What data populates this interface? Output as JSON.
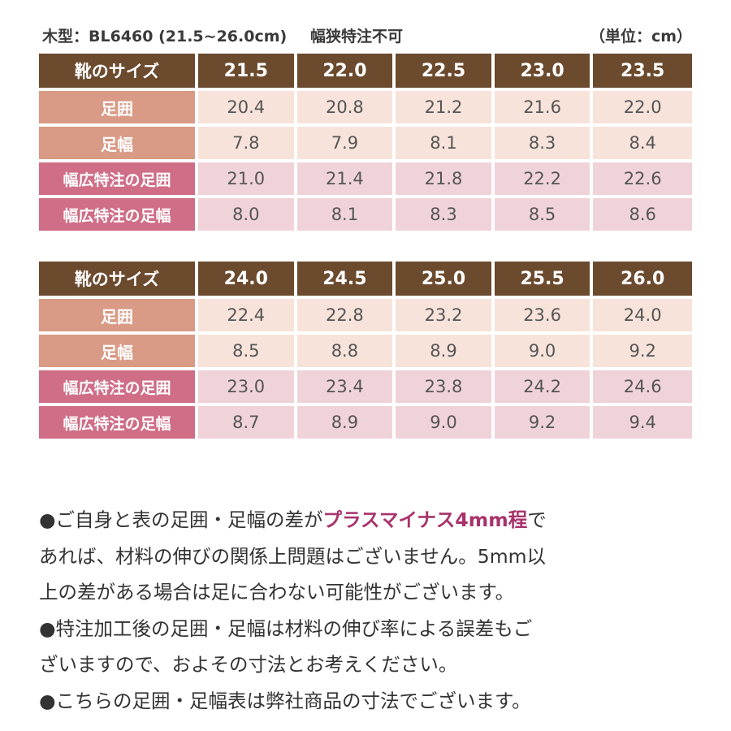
{
  "header": {
    "model": "木型：BL6460 (21.5~26.0cm)",
    "narrow": "幅狭特注不可",
    "unit": "（単位：cm）"
  },
  "row_labels": {
    "size": "靴のサイズ",
    "foot_girth": "足囲",
    "foot_width": "足幅",
    "wide_girth": "幅広特注の足囲",
    "wide_width": "幅広特注の足幅"
  },
  "tables": [
    {
      "sizes": [
        "21.5",
        "22.0",
        "22.5",
        "23.0",
        "23.5"
      ],
      "foot_girth": [
        "20.4",
        "20.8",
        "21.2",
        "21.6",
        "22.0"
      ],
      "foot_width": [
        "7.8",
        "7.9",
        "8.1",
        "8.3",
        "8.4"
      ],
      "wide_girth": [
        "21.0",
        "21.4",
        "21.8",
        "22.2",
        "22.6"
      ],
      "wide_width": [
        "8.0",
        "8.1",
        "8.3",
        "8.5",
        "8.6"
      ]
    },
    {
      "sizes": [
        "24.0",
        "24.5",
        "25.0",
        "25.5",
        "26.0"
      ],
      "foot_girth": [
        "22.4",
        "22.8",
        "23.2",
        "23.6",
        "24.0"
      ],
      "foot_width": [
        "8.5",
        "8.8",
        "8.9",
        "9.0",
        "9.2"
      ],
      "wide_girth": [
        "23.0",
        "23.4",
        "23.8",
        "24.2",
        "24.6"
      ],
      "wide_width": [
        "8.7",
        "8.9",
        "9.0",
        "9.2",
        "9.4"
      ]
    }
  ],
  "notes": {
    "note1_a": "●ご自身と表の足囲・足幅の差が",
    "note1_accent": "プラスマイナス4mm程",
    "note1_b": "で",
    "note1_line2": "あれば、材料の伸びの関係上問題はございません。5mm以",
    "note1_line3": "上の差がある場合は足に合わない可能性がございます。",
    "note2_line1": "●特注加工後の足囲・足幅は材料の伸び率による誤差もご",
    "note2_line2": "ざいますので、およその寸法とお考えください。",
    "note3": "●こちらの足囲・足幅表は弊社商品の寸法でございます。"
  }
}
